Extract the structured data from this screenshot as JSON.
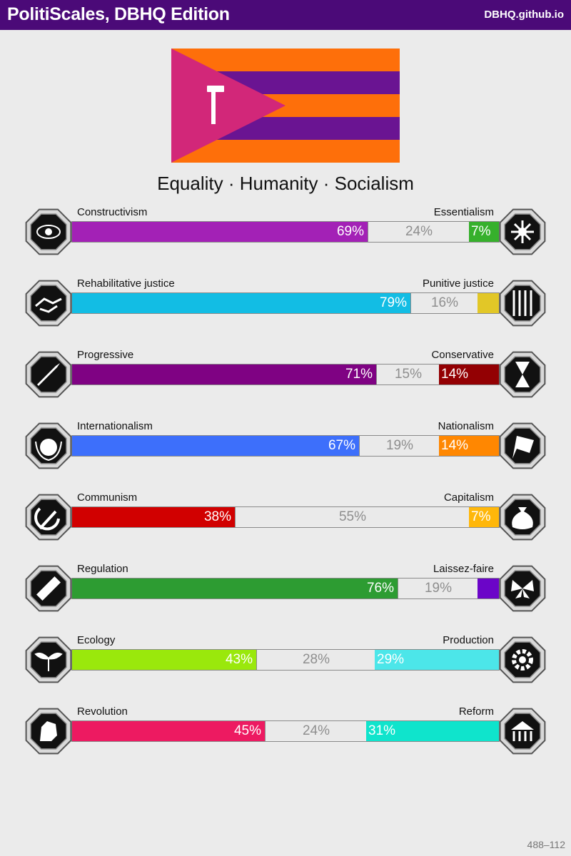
{
  "header": {
    "title": "PolitiScales, DBHQ Edition",
    "site": "DBHQ.github.io"
  },
  "flag": {
    "colors": {
      "orange": "#fe6f0a",
      "purple": "#6a1492",
      "magenta": "#d22779",
      "symbol": "#ffffff"
    },
    "symbol": "hammer-icon"
  },
  "ideology": "Equality · Humanity · Socialism",
  "axes": [
    {
      "left": "Constructivism",
      "right": "Essentialism",
      "leftPct": 69,
      "midPct": 24,
      "rightPct": 7,
      "leftText": "69%",
      "midText": "24%",
      "rightText": "7%",
      "leftColor": "#a321b6",
      "rightColor": "#36b02c",
      "leftIcon": "eye-icon",
      "rightIcon": "dna-flower-icon"
    },
    {
      "left": "Rehabilitative justice",
      "right": "Punitive justice",
      "leftPct": 79,
      "midPct": 16,
      "rightPct": 5,
      "leftText": "79%",
      "midText": "16%",
      "rightText": "",
      "leftColor": "#12bde4",
      "rightColor": "#e2c727",
      "leftIcon": "handshake-icon",
      "rightIcon": "prison-bars-icon"
    },
    {
      "left": "Progressive",
      "right": "Conservative",
      "leftPct": 71,
      "midPct": 15,
      "rightPct": 14,
      "leftText": "71%",
      "midText": "15%",
      "rightText": "14%",
      "leftColor": "#7f0283",
      "rightColor": "#930003",
      "leftIcon": "rocket-icon",
      "rightIcon": "hourglass-icon"
    },
    {
      "left": "Internationalism",
      "right": "Nationalism",
      "leftPct": 67,
      "midPct": 19,
      "rightPct": 14,
      "leftText": "67%",
      "midText": "19%",
      "rightText": "14%",
      "leftColor": "#3d6ffb",
      "rightColor": "#ff8701",
      "leftIcon": "globe-laurel-icon",
      "rightIcon": "flag-icon"
    },
    {
      "left": "Communism",
      "right": "Capitalism",
      "leftPct": 38,
      "midPct": 55,
      "rightPct": 7,
      "leftText": "38%",
      "midText": "55%",
      "rightText": "7%",
      "leftColor": "#d10000",
      "rightColor": "#ffb70a",
      "leftIcon": "hammer-sickle-icon",
      "rightIcon": "money-bag-icon"
    },
    {
      "left": "Regulation",
      "right": "Laissez-faire",
      "leftPct": 76,
      "midPct": 19,
      "rightPct": 5,
      "leftText": "76%",
      "midText": "19%",
      "rightText": "",
      "leftColor": "#2d9c32",
      "rightColor": "#6b05c8",
      "leftIcon": "ruler-icon",
      "rightIcon": "butterfly-icon"
    },
    {
      "left": "Ecology",
      "right": "Production",
      "leftPct": 43,
      "midPct": 28,
      "rightPct": 29,
      "leftText": "43%",
      "midText": "28%",
      "rightText": "29%",
      "leftColor": "#9ae80c",
      "rightColor": "#4ce6e9",
      "leftIcon": "sprout-icon",
      "rightIcon": "gear-icon"
    },
    {
      "left": "Revolution",
      "right": "Reform",
      "leftPct": 45,
      "midPct": 24,
      "rightPct": 31,
      "leftText": "45%",
      "midText": "24%",
      "rightText": "31%",
      "leftColor": "#ed1a61",
      "rightColor": "#0fe4cc",
      "leftIcon": "fist-icon",
      "rightIcon": "parliament-icon"
    }
  ],
  "footer": "488–112"
}
